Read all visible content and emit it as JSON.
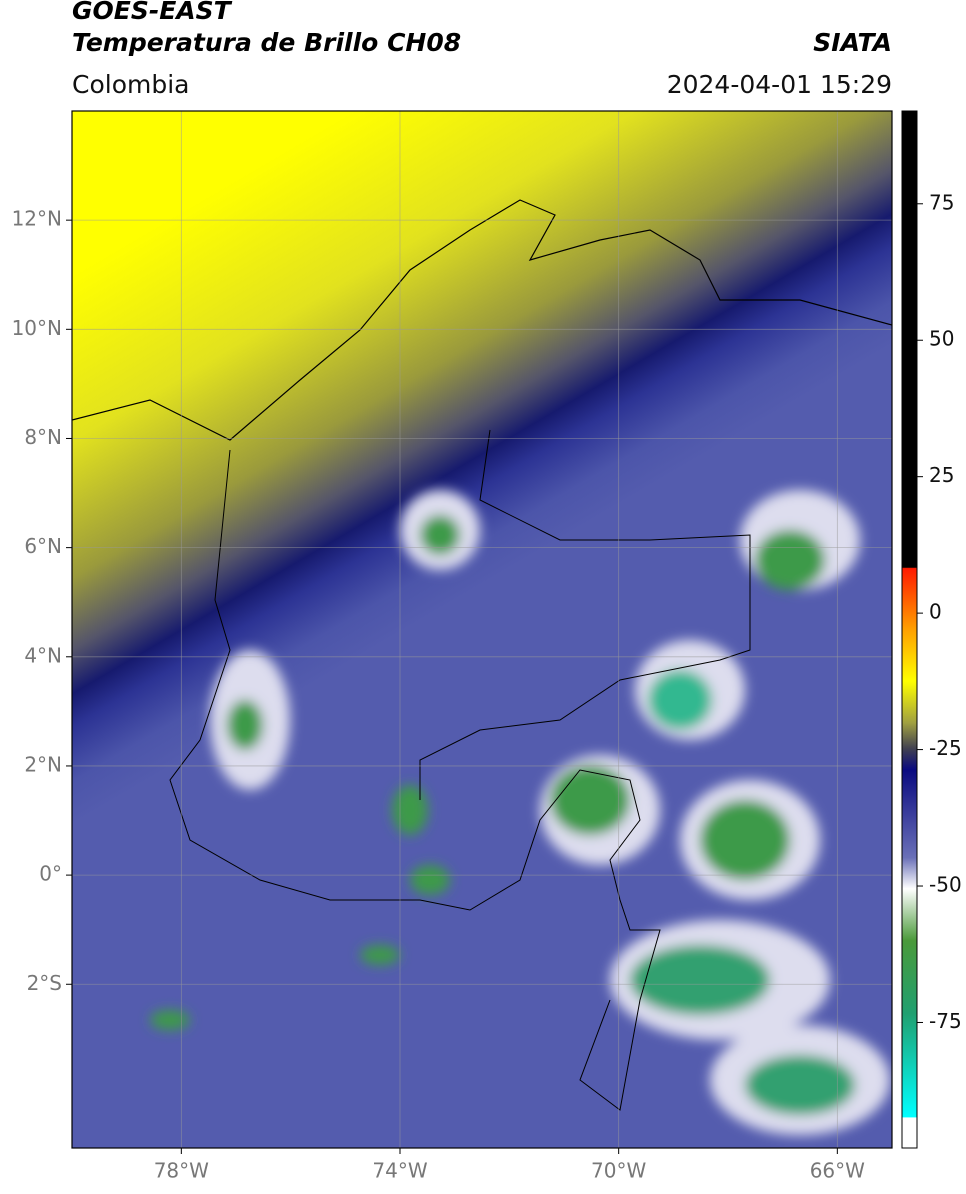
{
  "header": {
    "title": "GOES-EAST",
    "subtitle": "Temperatura de Brillo CH08",
    "source": "SIATA",
    "region": "Colombia",
    "datetime": "2024-04-01 15:29"
  },
  "map": {
    "xlim": [
      -80,
      -65
    ],
    "ylim": [
      -5,
      14
    ],
    "xticks": [
      {
        "value": -78,
        "label": "78°W"
      },
      {
        "value": -74,
        "label": "74°W"
      },
      {
        "value": -70,
        "label": "70°W"
      },
      {
        "value": -66,
        "label": "66°W"
      }
    ],
    "yticks": [
      {
        "value": 12,
        "label": "12°N"
      },
      {
        "value": 10,
        "label": "10°N"
      },
      {
        "value": 8,
        "label": "8°N"
      },
      {
        "value": 6,
        "label": "6°N"
      },
      {
        "value": 4,
        "label": "4°N"
      },
      {
        "value": 2,
        "label": "2°N"
      },
      {
        "value": 0,
        "label": "0°"
      },
      {
        "value": -2,
        "label": "2°S"
      }
    ]
  },
  "colorbar": {
    "lim": [
      -98,
      92
    ],
    "ticks": [
      75,
      50,
      25,
      0,
      -25,
      -50,
      -75
    ]
  }
}
